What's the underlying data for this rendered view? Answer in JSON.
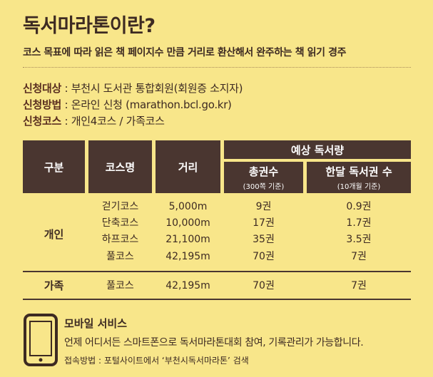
{
  "header": {
    "title": "독서마라톤이란?",
    "subtitle": "코스 목표에 따라 읽은 책 페이지수 만큼 거리로 환산해서 완주하는 책 읽기 경주"
  },
  "info": [
    {
      "label": "신청대상",
      "value": " : 부천시 도서관 통합회원(회원증 소지자)"
    },
    {
      "label": "신청방법",
      "value": " : 온라인 신청 (marathon.bcl.go.kr)"
    },
    {
      "label": "신청코스",
      "value": " : 개인4코스 / 가족코스"
    }
  ],
  "table": {
    "headers": {
      "category": "구분",
      "course_name": "코스명",
      "distance": "거리",
      "expected": "예상 독서량",
      "total_books": "총권수",
      "total_books_note": "(300쪽 기준)",
      "monthly_books": "한달 독서권 수",
      "monthly_books_note": "(10개월 기준)"
    },
    "groups": [
      {
        "name": "개인",
        "rows": [
          {
            "course": "걷기코스",
            "distance": "5,000m",
            "total": "9권",
            "monthly": "0.9권"
          },
          {
            "course": "단축코스",
            "distance": "10,000m",
            "total": "17권",
            "monthly": "1.7권"
          },
          {
            "course": "하프코스",
            "distance": "21,100m",
            "total": "35권",
            "monthly": "3.5권"
          },
          {
            "course": "풀코스",
            "distance": "42,195m",
            "total": "70권",
            "monthly": "7권"
          }
        ]
      },
      {
        "name": "가족",
        "rows": [
          {
            "course": "풀코스",
            "distance": "42,195m",
            "total": "70권",
            "monthly": "7권"
          }
        ]
      }
    ]
  },
  "mobile": {
    "icon": "smartphone-icon",
    "title": "모바일 서비스",
    "description": "언제 어디서든 스마트폰으로 독서마라톤대회 참여, 기록관리가 가능합니다.",
    "access": "접속방법 : 포털사이트에서 ‘부천시독서마라톤’ 검색"
  }
}
